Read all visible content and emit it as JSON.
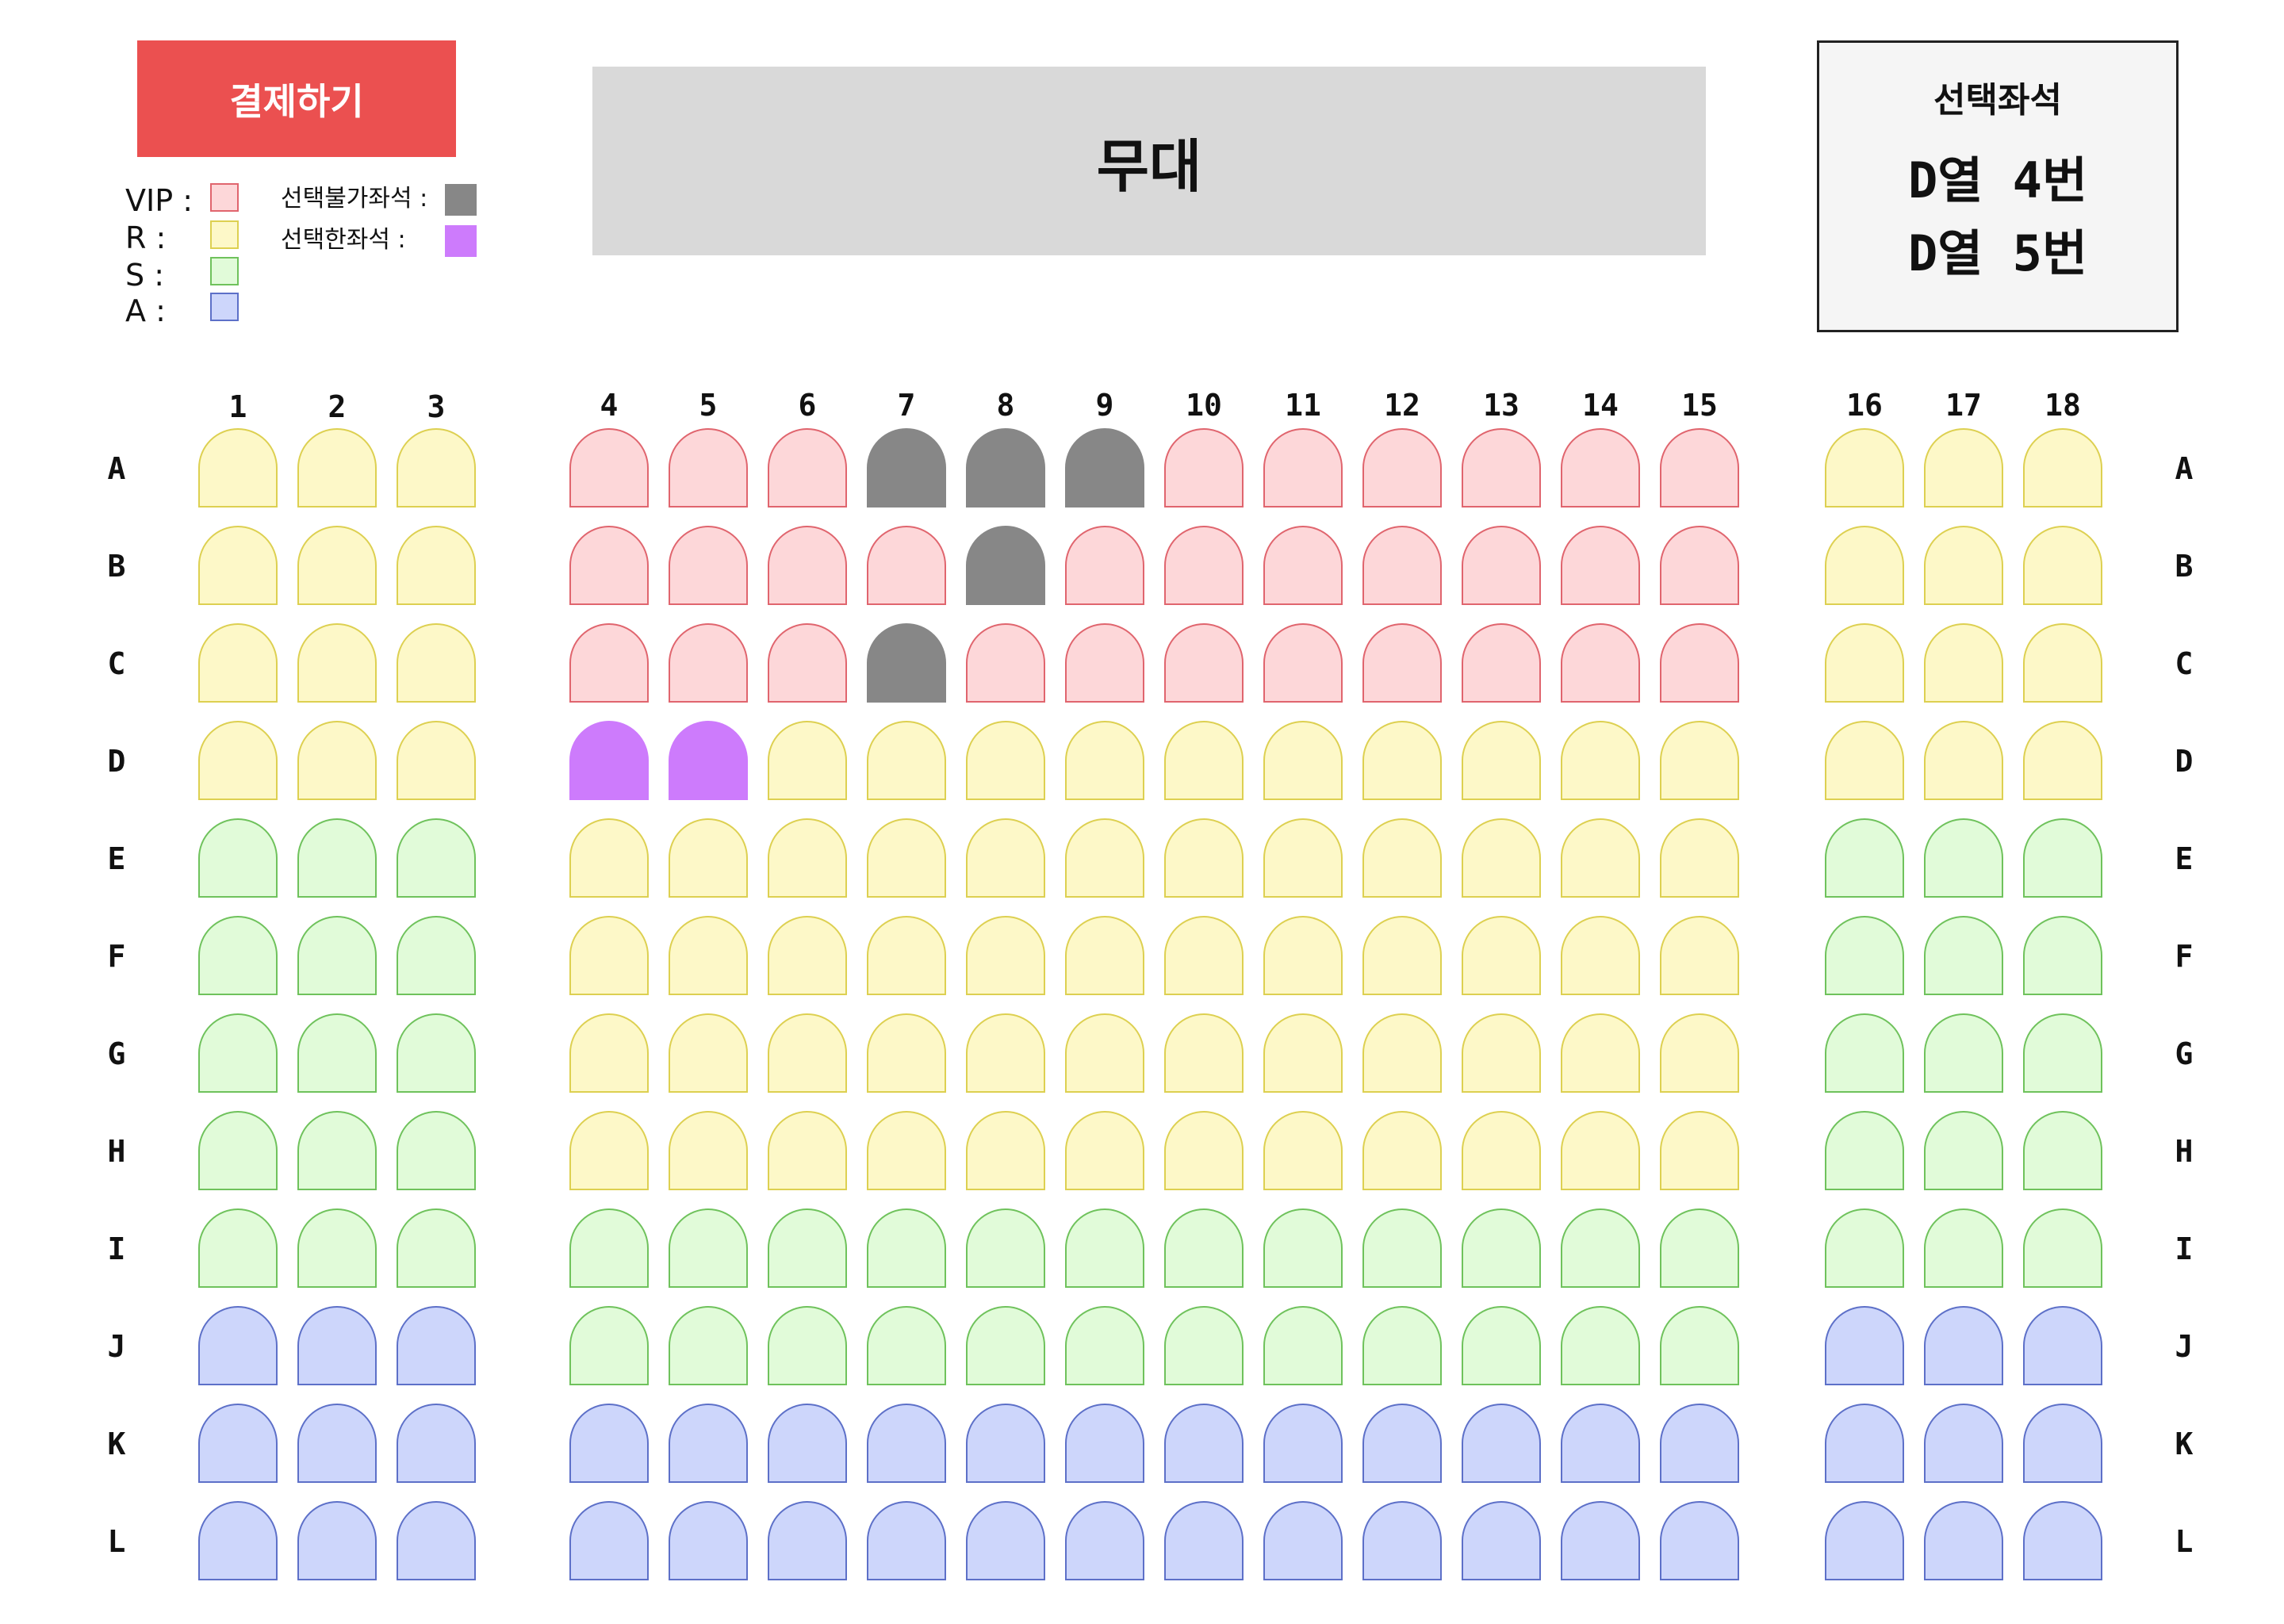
{
  "pay_button": {
    "label": "결제하기"
  },
  "stage": {
    "label": "무대"
  },
  "legend": {
    "grades": [
      {
        "label": "VIP :",
        "fill": "#fdd7d9",
        "border": "#e0656e"
      },
      {
        "label": "R :",
        "fill": "#fdf8c8",
        "border": "#ddd051"
      },
      {
        "label": "S :",
        "fill": "#e1fbd9",
        "border": "#6fc25c"
      },
      {
        "label": "A :",
        "fill": "#cdd6fb",
        "border": "#5d70c8"
      }
    ],
    "status": [
      {
        "label": "선택불가좌석 :",
        "fill": "#878787",
        "border": "#878787"
      },
      {
        "label": "선택한좌석 :",
        "fill": "#cd7bfc",
        "border": "#cd7bfc"
      }
    ]
  },
  "selected_panel": {
    "title": "선택좌석",
    "items": [
      "D열 4번",
      "D열 5번"
    ]
  },
  "seat_map": {
    "columns": [
      "1",
      "2",
      "3",
      "4",
      "5",
      "6",
      "7",
      "8",
      "9",
      "10",
      "11",
      "12",
      "13",
      "14",
      "15",
      "16",
      "17",
      "18"
    ],
    "rows": [
      "A",
      "B",
      "C",
      "D",
      "E",
      "F",
      "G",
      "H",
      "I",
      "J",
      "K",
      "L"
    ],
    "grades": [
      [
        "R",
        "R",
        "R",
        "VIP",
        "VIP",
        "VIP",
        "VIP",
        "VIP",
        "VIP",
        "VIP",
        "VIP",
        "VIP",
        "VIP",
        "VIP",
        "VIP",
        "R",
        "R",
        "R"
      ],
      [
        "R",
        "R",
        "R",
        "VIP",
        "VIP",
        "VIP",
        "VIP",
        "VIP",
        "VIP",
        "VIP",
        "VIP",
        "VIP",
        "VIP",
        "VIP",
        "VIP",
        "R",
        "R",
        "R"
      ],
      [
        "R",
        "R",
        "R",
        "VIP",
        "VIP",
        "VIP",
        "VIP",
        "VIP",
        "VIP",
        "VIP",
        "VIP",
        "VIP",
        "VIP",
        "VIP",
        "VIP",
        "R",
        "R",
        "R"
      ],
      [
        "R",
        "R",
        "R",
        "R",
        "R",
        "R",
        "R",
        "R",
        "R",
        "R",
        "R",
        "R",
        "R",
        "R",
        "R",
        "R",
        "R",
        "R"
      ],
      [
        "S",
        "S",
        "S",
        "R",
        "R",
        "R",
        "R",
        "R",
        "R",
        "R",
        "R",
        "R",
        "R",
        "R",
        "R",
        "S",
        "S",
        "S"
      ],
      [
        "S",
        "S",
        "S",
        "R",
        "R",
        "R",
        "R",
        "R",
        "R",
        "R",
        "R",
        "R",
        "R",
        "R",
        "R",
        "S",
        "S",
        "S"
      ],
      [
        "S",
        "S",
        "S",
        "R",
        "R",
        "R",
        "R",
        "R",
        "R",
        "R",
        "R",
        "R",
        "R",
        "R",
        "R",
        "S",
        "S",
        "S"
      ],
      [
        "S",
        "S",
        "S",
        "R",
        "R",
        "R",
        "R",
        "R",
        "R",
        "R",
        "R",
        "R",
        "R",
        "R",
        "R",
        "S",
        "S",
        "S"
      ],
      [
        "S",
        "S",
        "S",
        "S",
        "S",
        "S",
        "S",
        "S",
        "S",
        "S",
        "S",
        "S",
        "S",
        "S",
        "S",
        "S",
        "S",
        "S"
      ],
      [
        "A",
        "A",
        "A",
        "S",
        "S",
        "S",
        "S",
        "S",
        "S",
        "S",
        "S",
        "S",
        "S",
        "S",
        "S",
        "A",
        "A",
        "A"
      ],
      [
        "A",
        "A",
        "A",
        "A",
        "A",
        "A",
        "A",
        "A",
        "A",
        "A",
        "A",
        "A",
        "A",
        "A",
        "A",
        "A",
        "A",
        "A"
      ],
      [
        "A",
        "A",
        "A",
        "A",
        "A",
        "A",
        "A",
        "A",
        "A",
        "A",
        "A",
        "A",
        "A",
        "A",
        "A",
        "A",
        "A",
        "A"
      ]
    ],
    "unavailable": [
      "A7",
      "A8",
      "A9",
      "B8",
      "C7"
    ],
    "selected": [
      "D4",
      "D5"
    ],
    "colors": {
      "VIP": {
        "fill": "#fdd7d9",
        "border": "#e0656e"
      },
      "R": {
        "fill": "#fdf8c8",
        "border": "#ddd051"
      },
      "S": {
        "fill": "#e1fbd9",
        "border": "#6fc25c"
      },
      "A": {
        "fill": "#cdd6fb",
        "border": "#5d70c8"
      },
      "unavailable": {
        "fill": "#878787",
        "border": "#878787"
      },
      "selected": {
        "fill": "#cd7bfc",
        "border": "#cd7bfc"
      }
    }
  }
}
